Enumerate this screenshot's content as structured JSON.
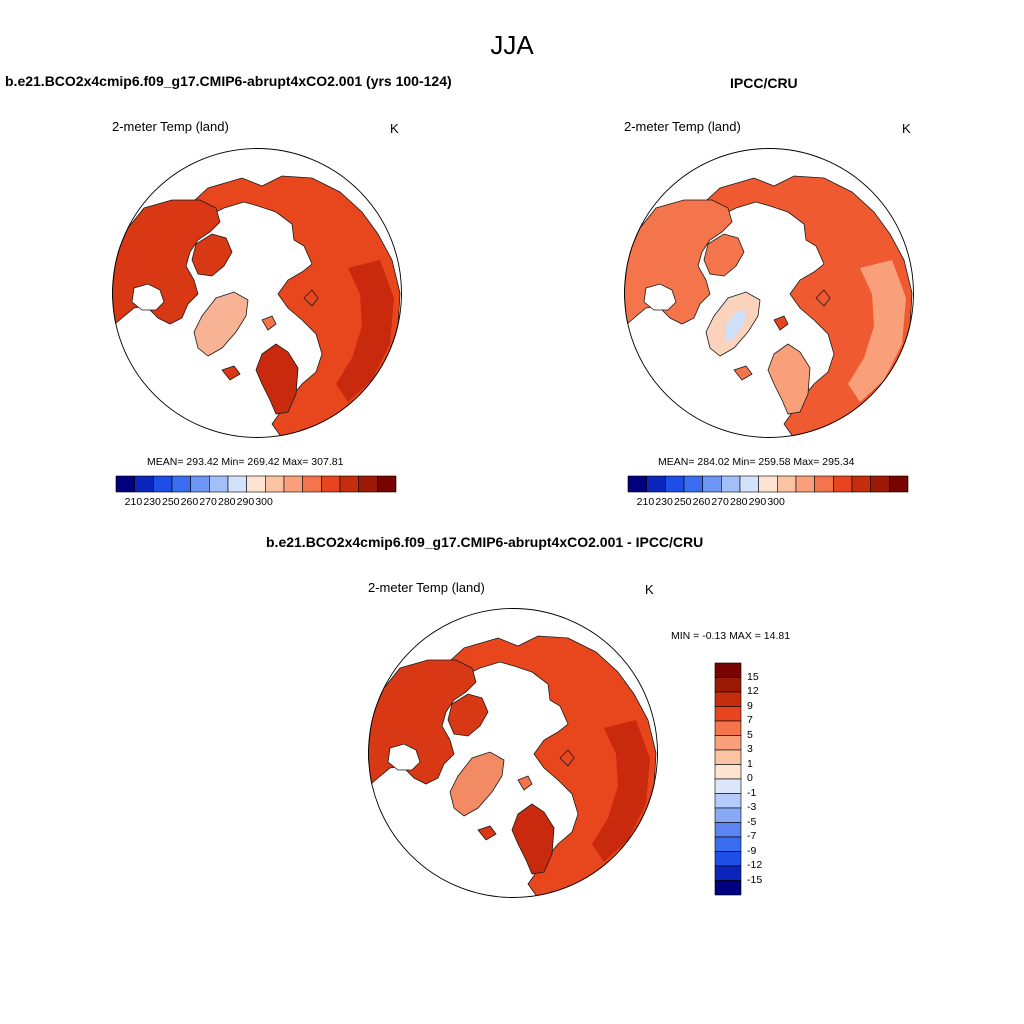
{
  "season": "JJA",
  "colors": {
    "abs_scale": [
      "#00007f",
      "#0b24b9",
      "#1d4ee6",
      "#3a6df0",
      "#6e96f4",
      "#a3bff8",
      "#d3e2fb",
      "#fde3d2",
      "#fbc3a4",
      "#f99f79",
      "#f4744b",
      "#e64520",
      "#c62d0d",
      "#9c1a04",
      "#780400"
    ],
    "diff_scale": [
      "#00007f",
      "#0b24b9",
      "#1d4ee6",
      "#3a6df0",
      "#5d85f2",
      "#88a9f6",
      "#b5cbf9",
      "#dce7fc",
      "#fde3d2",
      "#fbc3a4",
      "#f99f79",
      "#f4744b",
      "#e64520",
      "#c62d0d",
      "#9c1a04",
      "#780400"
    ],
    "land_fill": [
      "#e8461d",
      "#d93814",
      "#c92a0d",
      "#f4744b"
    ],
    "obs_fill": [
      "#ef5a30",
      "#f4744b",
      "#f99f79",
      "#e64520"
    ],
    "greenland_model": "#f7b394",
    "greenland_obs": "#fbd2bc",
    "greenland_ice": "#cfe0fb",
    "diff_greenland": "#f28a63"
  },
  "panels": {
    "model": {
      "title": "b.e21.BCO2x4cmip6.f09_g17.CMIP6-abrupt4xCO2.001 (yrs 100-124)",
      "variable": "2-meter Temp (land)",
      "units": "K",
      "stats": "MEAN= 293.42  Min= 269.42  Max= 307.81",
      "colorbar_labels": [
        "210",
        "230",
        "250",
        "260",
        "270",
        "280",
        "290",
        "300"
      ]
    },
    "obs": {
      "title": "IPCC/CRU",
      "variable": "2-meter Temp (land)",
      "units": "K",
      "stats": "MEAN= 284.02  Min= 259.58  Max= 295.34",
      "colorbar_labels": [
        "210",
        "230",
        "250",
        "260",
        "270",
        "280",
        "290",
        "300"
      ]
    },
    "diff": {
      "title": "b.e21.BCO2x4cmip6.f09_g17.CMIP6-abrupt4xCO2.001 - IPCC/CRU",
      "variable": "2-meter Temp (land)",
      "units": "K",
      "stats": "MIN =  -0.13 MAX =  14.81",
      "colorbar_labels": [
        "15",
        "12",
        "9",
        "7",
        "5",
        "3",
        "1",
        "0",
        "-1",
        "-3",
        "-5",
        "-7",
        "-9",
        "-12",
        "-15"
      ]
    }
  }
}
